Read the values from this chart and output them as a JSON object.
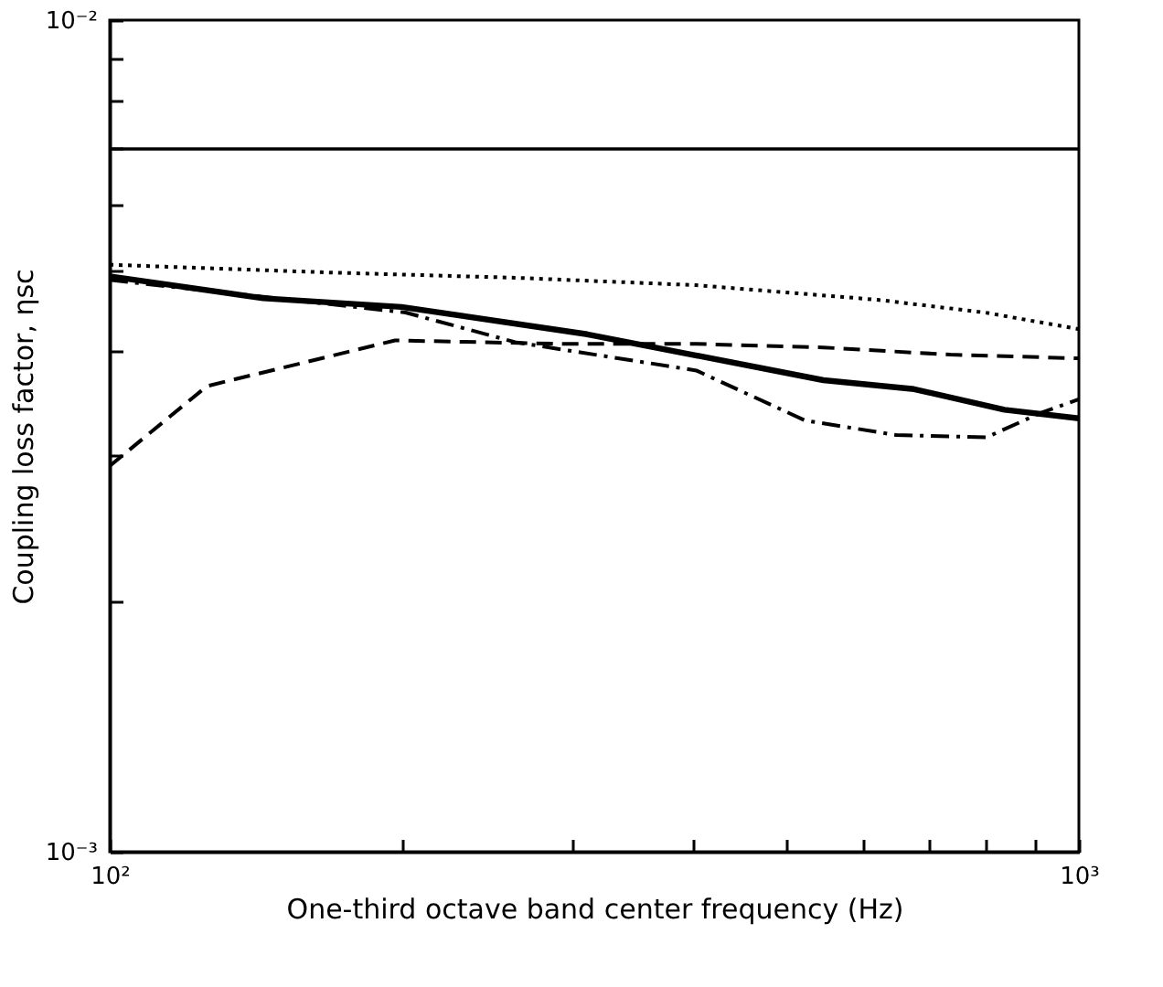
{
  "chart_data": {
    "type": "line",
    "xlabel": "One-third octave band center frequency (Hz)",
    "ylabel": "Coupling loss factor, ηsc",
    "log": "xy",
    "grid": false,
    "xlim": [
      100,
      1000
    ],
    "ylim": [
      0.001,
      0.01
    ],
    "xticks": [
      {
        "value": 100,
        "label": "10²"
      },
      {
        "value": 200,
        "label": null
      },
      {
        "value": 300,
        "label": null
      },
      {
        "value": 400,
        "label": null
      },
      {
        "value": 500,
        "label": null
      },
      {
        "value": 600,
        "label": null
      },
      {
        "value": 700,
        "label": null
      },
      {
        "value": 800,
        "label": null
      },
      {
        "value": 900,
        "label": null
      },
      {
        "value": 1000,
        "label": "10³"
      }
    ],
    "yticks": [
      {
        "value": 0.001,
        "label": "10⁻³"
      },
      {
        "value": 0.002,
        "label": null
      },
      {
        "value": 0.003,
        "label": null
      },
      {
        "value": 0.004,
        "label": null
      },
      {
        "value": 0.005,
        "label": null
      },
      {
        "value": 0.006,
        "label": null
      },
      {
        "value": 0.007,
        "label": null
      },
      {
        "value": 0.008,
        "label": null
      },
      {
        "value": 0.009,
        "label": null
      },
      {
        "value": 0.01,
        "label": "10⁻²"
      }
    ],
    "ref_lines": [
      {
        "axis": "y",
        "value": 0.007,
        "color": "#000000",
        "line_style": "solid"
      }
    ],
    "series": [
      {
        "color": "#000000",
        "line_style": "dotted",
        "x": [
          100,
          170,
          262,
          403,
          620,
          800,
          1000
        ],
        "values": [
          0.00508,
          0.00497,
          0.0049,
          0.0048,
          0.00461,
          0.00445,
          0.00425
        ]
      },
      {
        "color": "#000000",
        "line_style": "solid",
        "x": [
          100,
          144,
          200,
          311,
          545,
          676,
          838,
          1000
        ],
        "values": [
          0.00492,
          0.00463,
          0.00452,
          0.00419,
          0.00369,
          0.0036,
          0.0034,
          0.00332
        ]
      },
      {
        "color": "#000000",
        "line_style": "dashdot",
        "x": [
          100,
          202,
          262,
          403,
          522,
          648,
          803,
          913,
          1000
        ],
        "values": [
          0.00487,
          0.00445,
          0.0041,
          0.00379,
          0.0033,
          0.00317,
          0.00315,
          0.00337,
          0.0035
        ]
      },
      {
        "color": "#000000",
        "line_style": "dashed",
        "x": [
          100,
          126,
          197,
          294,
          403,
          545,
          737,
          1000
        ],
        "values": [
          0.00291,
          0.00363,
          0.00412,
          0.00408,
          0.00408,
          0.00404,
          0.00396,
          0.00392
        ]
      }
    ]
  }
}
